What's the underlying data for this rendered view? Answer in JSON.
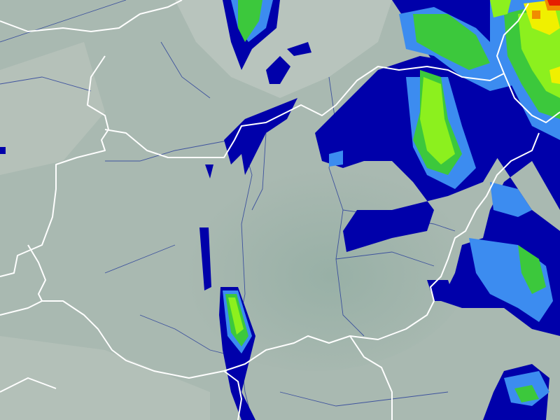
{
  "map": {
    "type": "precipitation-radar",
    "colors": {
      "land_base": "#a9b9b1",
      "lowland": "#9fb4aa",
      "highland": "#c3cbc4",
      "border": "#ffffff",
      "river": "#2a3f9a",
      "precip_level_1": "#0000aa",
      "precip_level_2": "#3c8cf0",
      "precip_level_3": "#3cc83c",
      "precip_level_4": "#8cf01e",
      "precip_level_5": "#f0f000",
      "precip_level_6": "#f08c00",
      "precip_level_7": "#e61e00"
    }
  }
}
